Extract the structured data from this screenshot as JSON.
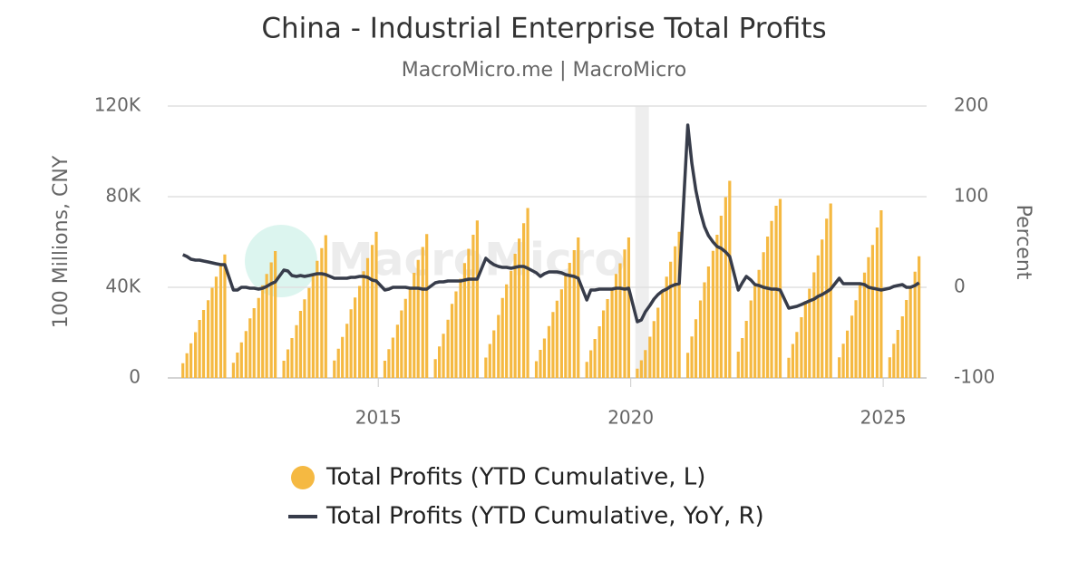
{
  "chart_data": {
    "type": "bar_line_dual",
    "title": "China - Industrial Enterprise Total Profits",
    "subtitle": "MacroMicro.me | MacroMicro",
    "watermark": "MacroMicro",
    "y_label": "100 Millions, CNY",
    "y2_label": "Percent",
    "x": [
      2011.13,
      2011.21,
      2011.29,
      2011.38,
      2011.46,
      2011.54,
      2011.63,
      2011.71,
      2011.79,
      2011.88,
      2011.96,
      2012.13,
      2012.21,
      2012.29,
      2012.38,
      2012.46,
      2012.54,
      2012.63,
      2012.71,
      2012.79,
      2012.88,
      2012.96,
      2013.13,
      2013.21,
      2013.29,
      2013.38,
      2013.46,
      2013.54,
      2013.63,
      2013.71,
      2013.79,
      2013.88,
      2013.96,
      2014.13,
      2014.21,
      2014.29,
      2014.38,
      2014.46,
      2014.54,
      2014.63,
      2014.71,
      2014.79,
      2014.88,
      2014.96,
      2015.13,
      2015.21,
      2015.29,
      2015.38,
      2015.46,
      2015.54,
      2015.63,
      2015.71,
      2015.79,
      2015.88,
      2015.96,
      2016.13,
      2016.21,
      2016.29,
      2016.38,
      2016.46,
      2016.54,
      2016.63,
      2016.71,
      2016.79,
      2016.88,
      2016.96,
      2017.13,
      2017.21,
      2017.29,
      2017.38,
      2017.46,
      2017.54,
      2017.63,
      2017.71,
      2017.79,
      2017.88,
      2017.96,
      2018.13,
      2018.21,
      2018.29,
      2018.38,
      2018.46,
      2018.54,
      2018.63,
      2018.71,
      2018.79,
      2018.88,
      2018.96,
      2019.13,
      2019.21,
      2019.29,
      2019.38,
      2019.46,
      2019.54,
      2019.63,
      2019.71,
      2019.79,
      2019.88,
      2019.96,
      2020.13,
      2020.21,
      2020.29,
      2020.38,
      2020.46,
      2020.54,
      2020.63,
      2020.71,
      2020.79,
      2020.88,
      2020.96,
      2021.13,
      2021.21,
      2021.29,
      2021.38,
      2021.46,
      2021.54,
      2021.63,
      2021.71,
      2021.79,
      2021.88,
      2021.96,
      2022.13,
      2022.21,
      2022.29,
      2022.38,
      2022.46,
      2022.54,
      2022.63,
      2022.71,
      2022.79,
      2022.88,
      2022.96,
      2023.13,
      2023.21,
      2023.29,
      2023.38,
      2023.46,
      2023.54,
      2023.63,
      2023.71,
      2023.79,
      2023.88,
      2023.96,
      2024.13,
      2024.21,
      2024.29,
      2024.38,
      2024.46,
      2024.54,
      2024.63,
      2024.71,
      2024.79,
      2024.88,
      2024.96,
      2025.13,
      2025.21,
      2025.29,
      2025.38,
      2025.46,
      2025.54,
      2025.63,
      2025.71
    ],
    "xlim": [
      2010.83,
      2025.86
    ],
    "xticks": [
      2015,
      2020,
      2025
    ],
    "highlight_xrange": [
      2020.09,
      2020.36
    ],
    "ylim": [
      0,
      120000
    ],
    "yticks": [
      0,
      {
        "value": 40000,
        "label": "40K"
      },
      {
        "value": 80000,
        "label": "80K"
      },
      {
        "value": 120000,
        "label": "120K"
      }
    ],
    "y2lim": [
      -100,
      200
    ],
    "y2ticks": [
      -100,
      0,
      100,
      200
    ],
    "grid": true,
    "legend": "bottom",
    "series": [
      {
        "name": "Total Profits (YTD Cumulative, L)",
        "type": "bar",
        "color": "#f5b942",
        "values": [
          6500,
          10900,
          15300,
          20200,
          25600,
          30000,
          34300,
          39800,
          44700,
          49600,
          54500,
          6700,
          11200,
          15700,
          20700,
          26300,
          30800,
          35300,
          40900,
          45900,
          51000,
          56000,
          7600,
          12600,
          17600,
          23300,
          29600,
          34700,
          39700,
          46000,
          51700,
          57300,
          63000,
          7700,
          12900,
          18100,
          23900,
          30300,
          35500,
          40600,
          47100,
          52900,
          58700,
          64500,
          7600,
          12700,
          17800,
          23500,
          29800,
          34900,
          40000,
          46400,
          52100,
          57800,
          63500,
          8300,
          13900,
          19500,
          25700,
          32700,
          38200,
          43800,
          50700,
          57000,
          63200,
          69500,
          9000,
          15000,
          21000,
          27800,
          35300,
          41300,
          47300,
          54800,
          61500,
          68300,
          75000,
          7400,
          12400,
          17400,
          22900,
          29100,
          34100,
          39100,
          45300,
          50800,
          56400,
          62000,
          7100,
          12200,
          17200,
          22800,
          29800,
          34800,
          39000,
          45900,
          50600,
          56700,
          62000,
          4100,
          7800,
          12300,
          18200,
          25100,
          31000,
          38200,
          44700,
          51300,
          58100,
          64500,
          11100,
          18300,
          25900,
          34200,
          42200,
          49200,
          56100,
          63200,
          71600,
          79800,
          87000,
          11600,
          17600,
          25200,
          34200,
          40600,
          47700,
          55500,
          62400,
          69300,
          76000,
          79000,
          8900,
          15000,
          20300,
          26800,
          33900,
          39400,
          46600,
          54100,
          61100,
          70300,
          77000,
          9100,
          15100,
          20900,
          27500,
          34300,
          40900,
          46500,
          53300,
          58700,
          66400,
          74000,
          9100,
          15100,
          21200,
          27200,
          34400,
          40200,
          46900,
          53700
        ]
      },
      {
        "name": "Total Profits (YTD Cumulative, YoY, R)",
        "type": "line",
        "axis": "y2",
        "color": "#373c4a",
        "values": [
          36,
          34,
          31,
          30,
          30,
          29,
          28,
          27,
          26,
          25,
          25,
          -3,
          -3,
          0,
          0,
          -1,
          -1,
          -2,
          -1,
          1,
          4,
          6,
          19,
          18,
          13,
          12,
          13,
          12,
          13,
          14,
          15,
          15,
          14,
          10,
          10,
          10,
          10,
          11,
          11,
          12,
          12,
          11,
          8,
          7,
          -3,
          -2,
          0,
          0,
          0,
          0,
          -1,
          -1,
          -1,
          -2,
          -2,
          5,
          6,
          6,
          7,
          7,
          7,
          7,
          8,
          9,
          9,
          9,
          32,
          28,
          25,
          23,
          22,
          22,
          21,
          22,
          23,
          23,
          21,
          16,
          12,
          15,
          17,
          17,
          17,
          16,
          14,
          13,
          12,
          10,
          -14,
          -3,
          -3,
          -2,
          -2,
          -2,
          -2,
          -1,
          -1,
          -2,
          -1,
          -38,
          -36,
          -27,
          -20,
          -13,
          -8,
          -4,
          -2,
          1,
          3,
          4,
          179,
          137,
          107,
          83,
          67,
          57,
          50,
          45,
          43,
          39,
          34,
          -3,
          5,
          12,
          8,
          3,
          2,
          0,
          -1,
          -2,
          -2,
          -3,
          -23,
          -22,
          -21,
          -19,
          -17,
          -15,
          -13,
          -10,
          -8,
          -5,
          -2,
          10,
          4,
          4,
          4,
          4,
          4,
          3,
          0,
          -1,
          -2,
          -3,
          -1,
          1,
          2,
          3,
          0,
          0,
          2,
          5
        ]
      }
    ]
  }
}
